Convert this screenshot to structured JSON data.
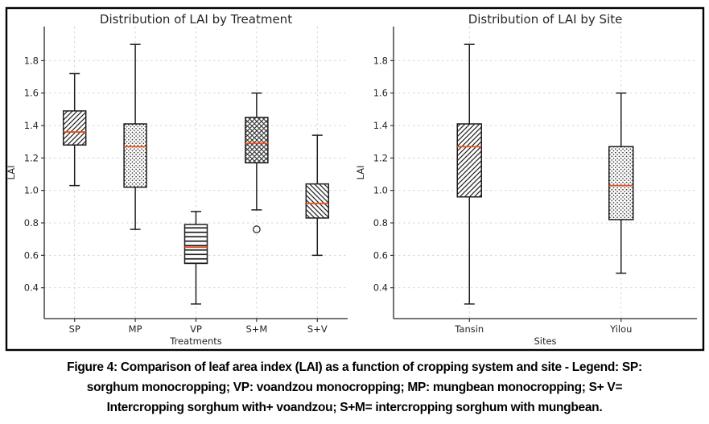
{
  "figure": {
    "caption_lines": [
      "Figure 4: Comparison of leaf area index (LAI) as a function of cropping system and site - Legend: SP:",
      "sorghum monocropping; VP: voandzou monocropping; MP: mungbean monocropping; S+ V=",
      "Intercropping sorghum with+ voandzou; S+M= intercropping sorghum with mungbean."
    ]
  },
  "style": {
    "frame_color": "#000000",
    "box_edge_color": "#1f1f1f",
    "median_color": "#e8501e",
    "grid_color": "#cfcfcf",
    "text_color": "#262626",
    "background": "#ffffff"
  },
  "chart_data": [
    {
      "type": "box",
      "title": "Distribution of LAI by Treatment",
      "xlabel": "Treatments",
      "ylabel": "LAI",
      "categories": [
        "SP",
        "MP",
        "VP",
        "S+M",
        "S+V"
      ],
      "yticks": [
        0.4,
        0.6,
        0.8,
        1.0,
        1.2,
        1.4,
        1.6,
        1.8
      ],
      "ylim": [
        0.21,
        2.01
      ],
      "grid": "dashed-both",
      "legend": "none",
      "boxes": [
        {
          "label": "SP",
          "whisker_low": 1.03,
          "q1": 1.28,
          "median": 1.36,
          "q3": 1.49,
          "whisker_high": 1.72,
          "hatch": "diagonal-up",
          "outliers": []
        },
        {
          "label": "MP",
          "whisker_low": 0.76,
          "q1": 1.02,
          "median": 1.27,
          "q3": 1.41,
          "whisker_high": 1.9,
          "hatch": "dots",
          "outliers": []
        },
        {
          "label": "VP",
          "whisker_low": 0.3,
          "q1": 0.55,
          "median": 0.65,
          "q3": 0.79,
          "whisker_high": 0.87,
          "hatch": "horizontal",
          "outliers": []
        },
        {
          "label": "S+M",
          "whisker_low": 0.88,
          "q1": 1.17,
          "median": 1.29,
          "q3": 1.45,
          "whisker_high": 1.6,
          "hatch": "crosshatch",
          "outliers": [
            0.76
          ]
        },
        {
          "label": "S+V",
          "whisker_low": 0.6,
          "q1": 0.83,
          "median": 0.92,
          "q3": 1.04,
          "whisker_high": 1.34,
          "hatch": "diagonal-down",
          "outliers": []
        }
      ]
    },
    {
      "type": "box",
      "title": "Distribution of LAI by Site",
      "xlabel": "Sites",
      "ylabel": "LAI",
      "categories": [
        "Tansin",
        "Yilou"
      ],
      "yticks": [
        0.4,
        0.6,
        0.8,
        1.0,
        1.2,
        1.4,
        1.6,
        1.8
      ],
      "ylim": [
        0.21,
        2.01
      ],
      "grid": "dashed-both",
      "legend": "none",
      "boxes": [
        {
          "label": "Tansin",
          "whisker_low": 0.3,
          "q1": 0.96,
          "median": 1.27,
          "q3": 1.41,
          "whisker_high": 1.9,
          "hatch": "diagonal-up",
          "outliers": []
        },
        {
          "label": "Yilou",
          "whisker_low": 0.49,
          "q1": 0.82,
          "median": 1.03,
          "q3": 1.27,
          "whisker_high": 1.6,
          "hatch": "dots",
          "outliers": []
        }
      ]
    }
  ]
}
